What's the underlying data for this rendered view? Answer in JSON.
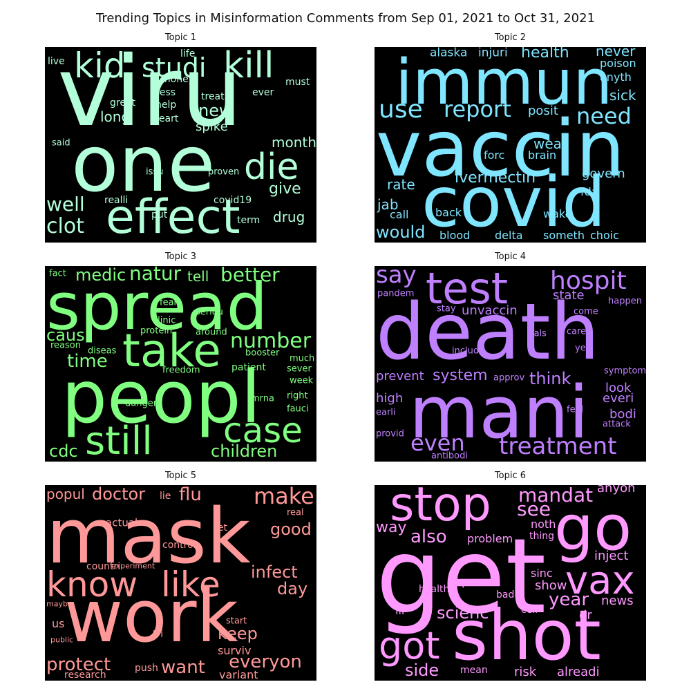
{
  "title": "Trending Topics in Misinformation Comments from Sep 01, 2021 to Oct 31, 2021",
  "topics": [
    {
      "label": "Topic 1",
      "color": "#b3ffd9",
      "words": [
        [
          "viru",
          140
        ],
        [
          "one",
          112
        ],
        [
          "effect",
          68
        ],
        [
          "kill",
          52
        ],
        [
          "kid",
          50
        ],
        [
          "die",
          52
        ],
        [
          "studi",
          38
        ],
        [
          "well",
          28
        ],
        [
          "clot",
          30
        ],
        [
          "new",
          24
        ],
        [
          "give",
          22
        ],
        [
          "month",
          20
        ],
        [
          "drug",
          20
        ],
        [
          "long",
          20
        ],
        [
          "spike",
          18
        ],
        [
          "must",
          14
        ],
        [
          "live",
          14
        ],
        [
          "life",
          14
        ],
        [
          "money",
          14
        ],
        [
          "less",
          14
        ],
        [
          "treat",
          14
        ],
        [
          "ever",
          14
        ],
        [
          "great",
          14
        ],
        [
          "help",
          14
        ],
        [
          "heart",
          14
        ],
        [
          "said",
          13
        ],
        [
          "issu",
          13
        ],
        [
          "proven",
          13
        ],
        [
          "realli",
          14
        ],
        [
          "covid19",
          14
        ],
        [
          "put",
          14
        ],
        [
          "term",
          14
        ]
      ]
    },
    {
      "label": "Topic 2",
      "color": "#80e5ff",
      "words": [
        [
          "vaccin",
          112
        ],
        [
          "immun",
          90
        ],
        [
          "covid",
          100
        ],
        [
          "use",
          36
        ],
        [
          "report",
          32
        ],
        [
          "need",
          32
        ],
        [
          "health",
          22
        ],
        [
          "never",
          20
        ],
        [
          "alaska",
          17
        ],
        [
          "injuri",
          17
        ],
        [
          "poison",
          16
        ],
        [
          "anyth",
          16
        ],
        [
          "sick",
          20
        ],
        [
          "posit",
          18
        ],
        [
          "wear",
          20
        ],
        [
          "forc",
          16
        ],
        [
          "brain",
          16
        ],
        [
          "ivermectin",
          22
        ],
        [
          "govern",
          18
        ],
        [
          "rate",
          20
        ],
        [
          "jab",
          20
        ],
        [
          "fda",
          16
        ],
        [
          "call",
          16
        ],
        [
          "back",
          16
        ],
        [
          "wake",
          16
        ],
        [
          "would",
          24
        ],
        [
          "blood",
          16
        ],
        [
          "delta",
          16
        ],
        [
          "someth",
          16
        ],
        [
          "choic",
          16
        ]
      ]
    },
    {
      "label": "Topic 3",
      "color": "#80ff80",
      "words": [
        [
          "spread",
          94
        ],
        [
          "peopl",
          104
        ],
        [
          "take",
          66
        ],
        [
          "still",
          56
        ],
        [
          "case",
          50
        ],
        [
          "number",
          30
        ],
        [
          "better",
          28
        ],
        [
          "natur",
          28
        ],
        [
          "medic",
          24
        ],
        [
          "tell",
          20
        ],
        [
          "caus",
          24
        ],
        [
          "time",
          26
        ],
        [
          "children",
          24
        ],
        [
          "cdc",
          24
        ],
        [
          "fact",
          13
        ],
        [
          "fear",
          13
        ],
        [
          "seriou",
          13
        ],
        [
          "clinic",
          13
        ],
        [
          "protein",
          13
        ],
        [
          "around",
          13
        ],
        [
          "reason",
          13
        ],
        [
          "diseas",
          13
        ],
        [
          "booster",
          13
        ],
        [
          "freedom",
          13
        ],
        [
          "patient",
          14
        ],
        [
          "much",
          13
        ],
        [
          "sever",
          13
        ],
        [
          "week",
          13
        ],
        [
          "danger",
          13
        ],
        [
          "mrna",
          13
        ],
        [
          "right",
          13
        ],
        [
          "fauci",
          13
        ]
      ]
    },
    {
      "label": "Topic 4",
      "color": "#bf80ff",
      "words": [
        [
          "death",
          112
        ],
        [
          "mani",
          104
        ],
        [
          "test",
          62
        ],
        [
          "hospit",
          36
        ],
        [
          "say",
          34
        ],
        [
          "treatment",
          34
        ],
        [
          "even",
          32
        ],
        [
          "unvaccin",
          18
        ],
        [
          "state",
          18
        ],
        [
          "think",
          24
        ],
        [
          "system",
          22
        ],
        [
          "prevent",
          18
        ],
        [
          "pandem",
          13
        ],
        [
          "stay",
          13
        ],
        [
          "happen",
          13
        ],
        [
          "come",
          13
        ],
        [
          "fals",
          13
        ],
        [
          "care",
          13
        ],
        [
          "includ",
          13
        ],
        [
          "yet",
          13
        ],
        [
          "symptom",
          13
        ],
        [
          "approv",
          13
        ],
        [
          "look",
          18
        ],
        [
          "everi",
          18
        ],
        [
          "high",
          18
        ],
        [
          "feel",
          13
        ],
        [
          "bodi",
          18
        ],
        [
          "earli",
          13
        ],
        [
          "attack",
          13
        ],
        [
          "provid",
          13
        ],
        [
          "antibodi",
          13
        ]
      ]
    },
    {
      "label": "Topic 5",
      "color": "#ff9999",
      "words": [
        [
          "mask",
          110
        ],
        [
          "work",
          104
        ],
        [
          "know",
          50
        ],
        [
          "like",
          50
        ],
        [
          "make",
          32
        ],
        [
          "doctor",
          24
        ],
        [
          "flu",
          26
        ],
        [
          "popul",
          20
        ],
        [
          "lie",
          14
        ],
        [
          "real",
          13
        ],
        [
          "good",
          24
        ],
        [
          "actual",
          15
        ],
        [
          "let",
          14
        ],
        [
          "control",
          14
        ],
        [
          "infect",
          24
        ],
        [
          "countri",
          14
        ],
        [
          "experiment",
          11
        ],
        [
          "day",
          24
        ],
        [
          "mayb",
          11
        ],
        [
          "start",
          13
        ],
        [
          "us",
          16
        ],
        [
          "keep",
          24
        ],
        [
          "public",
          11
        ],
        [
          "tri",
          14
        ],
        [
          "surviv",
          16
        ],
        [
          "protect",
          26
        ],
        [
          "want",
          26
        ],
        [
          "everyon",
          26
        ],
        [
          "push",
          14
        ],
        [
          "research",
          14
        ],
        [
          "variant",
          16
        ]
      ]
    },
    {
      "label": "Topic 6",
      "color": "#ff99ff",
      "words": [
        [
          "get",
          150
        ],
        [
          "shot",
          100
        ],
        [
          "go",
          90
        ],
        [
          "stop",
          68
        ],
        [
          "vax",
          56
        ],
        [
          "got",
          54
        ],
        [
          "mandat",
          28
        ],
        [
          "anyon",
          18
        ],
        [
          "see",
          28
        ],
        [
          "way",
          22
        ],
        [
          "also",
          26
        ],
        [
          "noth",
          16
        ],
        [
          "thing",
          14
        ],
        [
          "problem",
          16
        ],
        [
          "inject",
          18
        ],
        [
          "sinc",
          16
        ],
        [
          "person",
          16
        ],
        [
          "show",
          18
        ],
        [
          "year",
          26
        ],
        [
          "healthi",
          14
        ],
        [
          "bad",
          14
        ],
        [
          "news",
          18
        ],
        [
          "cell",
          14
        ],
        [
          "ill",
          16
        ],
        [
          "scienc",
          24
        ],
        [
          "dr",
          18
        ],
        [
          "side",
          24
        ],
        [
          "mean",
          14
        ],
        [
          "risk",
          18
        ],
        [
          "alreadi",
          18
        ]
      ]
    }
  ]
}
